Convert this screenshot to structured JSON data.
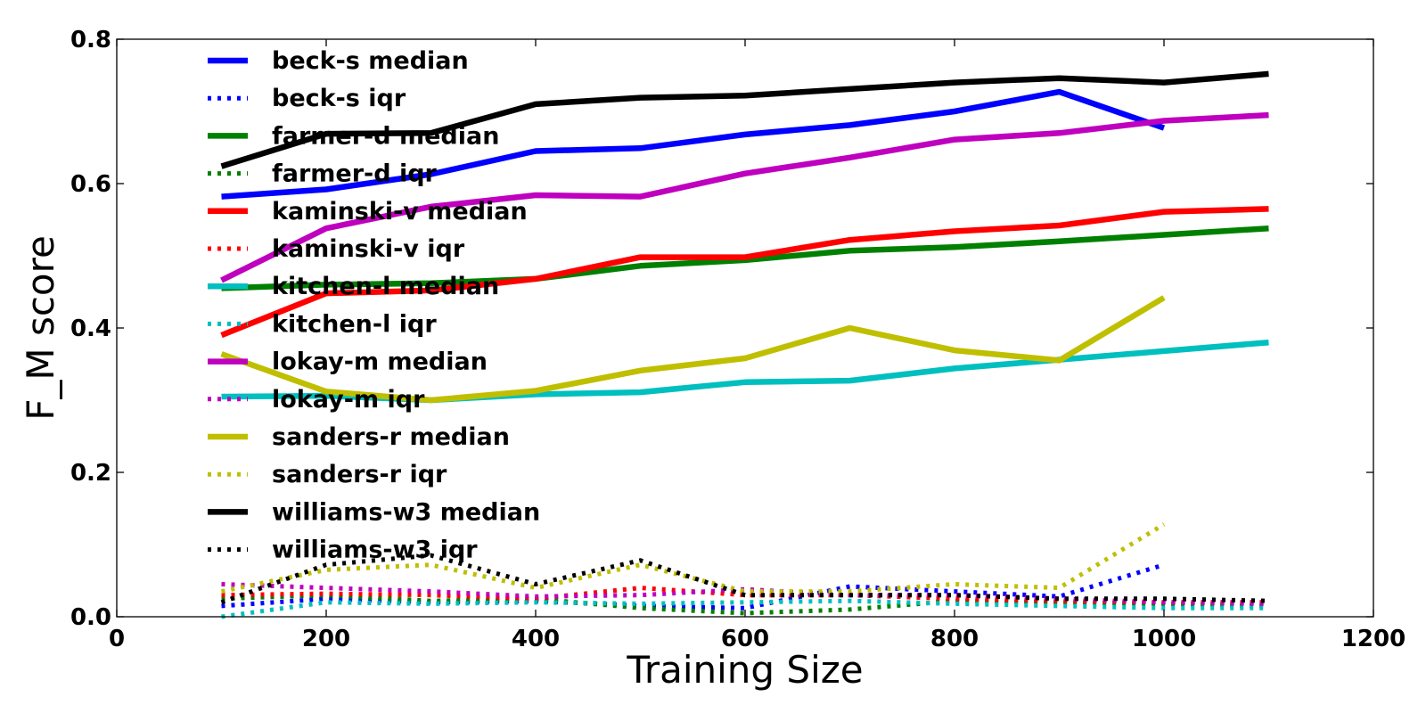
{
  "chart_data": {
    "type": "line",
    "xlabel": "Training Size",
    "ylabel": "F_M score",
    "xlim": [
      0,
      1200
    ],
    "ylim": [
      0,
      0.8
    ],
    "xticks": [
      0,
      200,
      400,
      600,
      800,
      1000,
      1200
    ],
    "yticks": [
      0.0,
      0.2,
      0.4,
      0.6,
      0.8
    ],
    "x_tick_labels": [
      "0",
      "200",
      "400",
      "600",
      "800",
      "1000",
      "1200"
    ],
    "y_tick_labels": [
      "0.0",
      "0.2",
      "0.4",
      "0.6",
      "0.8"
    ],
    "legend_position": "upper-left",
    "grid": false,
    "series": [
      {
        "name": "beck-s median",
        "color": "#0000ff",
        "style": "solid",
        "x": [
          100,
          200,
          300,
          400,
          500,
          600,
          700,
          800,
          900,
          1000
        ],
        "y": [
          0.582,
          0.592,
          0.613,
          0.645,
          0.649,
          0.668,
          0.681,
          0.7,
          0.727,
          0.677
        ]
      },
      {
        "name": "beck-s iqr",
        "color": "#0000ff",
        "style": "dotted",
        "x": [
          100,
          200,
          300,
          400,
          500,
          600,
          700,
          800,
          900,
          1000
        ],
        "y": [
          0.015,
          0.025,
          0.02,
          0.022,
          0.015,
          0.012,
          0.042,
          0.035,
          0.028,
          0.072
        ]
      },
      {
        "name": "farmer-d median",
        "color": "#008000",
        "style": "solid",
        "x": [
          100,
          200,
          300,
          400,
          500,
          600,
          700,
          800,
          900,
          1000,
          1100
        ],
        "y": [
          0.455,
          0.46,
          0.462,
          0.468,
          0.486,
          0.494,
          0.507,
          0.512,
          0.52,
          0.529,
          0.538
        ]
      },
      {
        "name": "farmer-d iqr",
        "color": "#008000",
        "style": "dotted",
        "x": [
          100,
          200,
          300,
          400,
          500,
          600,
          700,
          800,
          900,
          1000,
          1100
        ],
        "y": [
          0.025,
          0.03,
          0.022,
          0.025,
          0.012,
          0.005,
          0.01,
          0.022,
          0.02,
          0.018,
          0.015
        ]
      },
      {
        "name": "kaminski-v median",
        "color": "#ff0000",
        "style": "solid",
        "x": [
          100,
          200,
          300,
          400,
          500,
          600,
          700,
          800,
          900,
          1000,
          1100
        ],
        "y": [
          0.39,
          0.448,
          0.452,
          0.468,
          0.498,
          0.498,
          0.522,
          0.534,
          0.542,
          0.561,
          0.565
        ]
      },
      {
        "name": "kaminski-v iqr",
        "color": "#ff0000",
        "style": "dotted",
        "x": [
          100,
          200,
          300,
          400,
          500,
          600,
          700,
          800,
          900,
          1000,
          1100
        ],
        "y": [
          0.03,
          0.032,
          0.03,
          0.025,
          0.04,
          0.03,
          0.03,
          0.025,
          0.022,
          0.02,
          0.02
        ]
      },
      {
        "name": "kitchen-l median",
        "color": "#00bfbf",
        "style": "solid",
        "x": [
          100,
          200,
          300,
          400,
          500,
          600,
          700,
          800,
          900,
          1000,
          1100
        ],
        "y": [
          0.305,
          0.306,
          0.3,
          0.308,
          0.311,
          0.325,
          0.327,
          0.344,
          0.356,
          0.368,
          0.38
        ]
      },
      {
        "name": "kitchen-l iqr",
        "color": "#00bfbf",
        "style": "dotted",
        "x": [
          100,
          200,
          300,
          400,
          500,
          600,
          700,
          800,
          900,
          1000,
          1100
        ],
        "y": [
          0.0,
          0.02,
          0.018,
          0.02,
          0.018,
          0.02,
          0.022,
          0.018,
          0.015,
          0.012,
          0.012
        ]
      },
      {
        "name": "lokay-m median",
        "color": "#bf00bf",
        "style": "solid",
        "x": [
          100,
          200,
          300,
          400,
          500,
          600,
          700,
          800,
          900,
          1000,
          1100
        ],
        "y": [
          0.466,
          0.538,
          0.568,
          0.584,
          0.582,
          0.614,
          0.636,
          0.661,
          0.67,
          0.687,
          0.695
        ]
      },
      {
        "name": "lokay-m iqr",
        "color": "#bf00bf",
        "style": "dotted",
        "x": [
          100,
          200,
          300,
          400,
          500,
          600,
          700,
          800,
          900,
          1000,
          1100
        ],
        "y": [
          0.045,
          0.04,
          0.035,
          0.028,
          0.03,
          0.038,
          0.03,
          0.03,
          0.025,
          0.02,
          0.018
        ]
      },
      {
        "name": "sanders-r median",
        "color": "#bfbf00",
        "style": "solid",
        "x": [
          100,
          200,
          300,
          400,
          500,
          600,
          700,
          800,
          900,
          1000
        ],
        "y": [
          0.364,
          0.312,
          0.3,
          0.313,
          0.341,
          0.358,
          0.4,
          0.369,
          0.355,
          0.442
        ]
      },
      {
        "name": "sanders-r iqr",
        "color": "#bfbf00",
        "style": "dotted",
        "x": [
          100,
          200,
          300,
          400,
          500,
          600,
          700,
          800,
          900,
          1000
        ],
        "y": [
          0.035,
          0.065,
          0.072,
          0.04,
          0.072,
          0.035,
          0.035,
          0.045,
          0.04,
          0.128
        ]
      },
      {
        "name": "williams-w3 median",
        "color": "#000000",
        "style": "solid",
        "x": [
          100,
          200,
          300,
          400,
          500,
          600,
          700,
          800,
          900,
          1000,
          1100
        ],
        "y": [
          0.624,
          0.669,
          0.67,
          0.71,
          0.719,
          0.722,
          0.731,
          0.74,
          0.746,
          0.74,
          0.752
        ]
      },
      {
        "name": "williams-w3 iqr",
        "color": "#000000",
        "style": "dotted",
        "x": [
          100,
          200,
          300,
          400,
          500,
          600,
          700,
          800,
          900,
          1000,
          1100
        ],
        "y": [
          0.02,
          0.072,
          0.085,
          0.045,
          0.078,
          0.03,
          0.03,
          0.03,
          0.025,
          0.025,
          0.022
        ]
      }
    ]
  }
}
